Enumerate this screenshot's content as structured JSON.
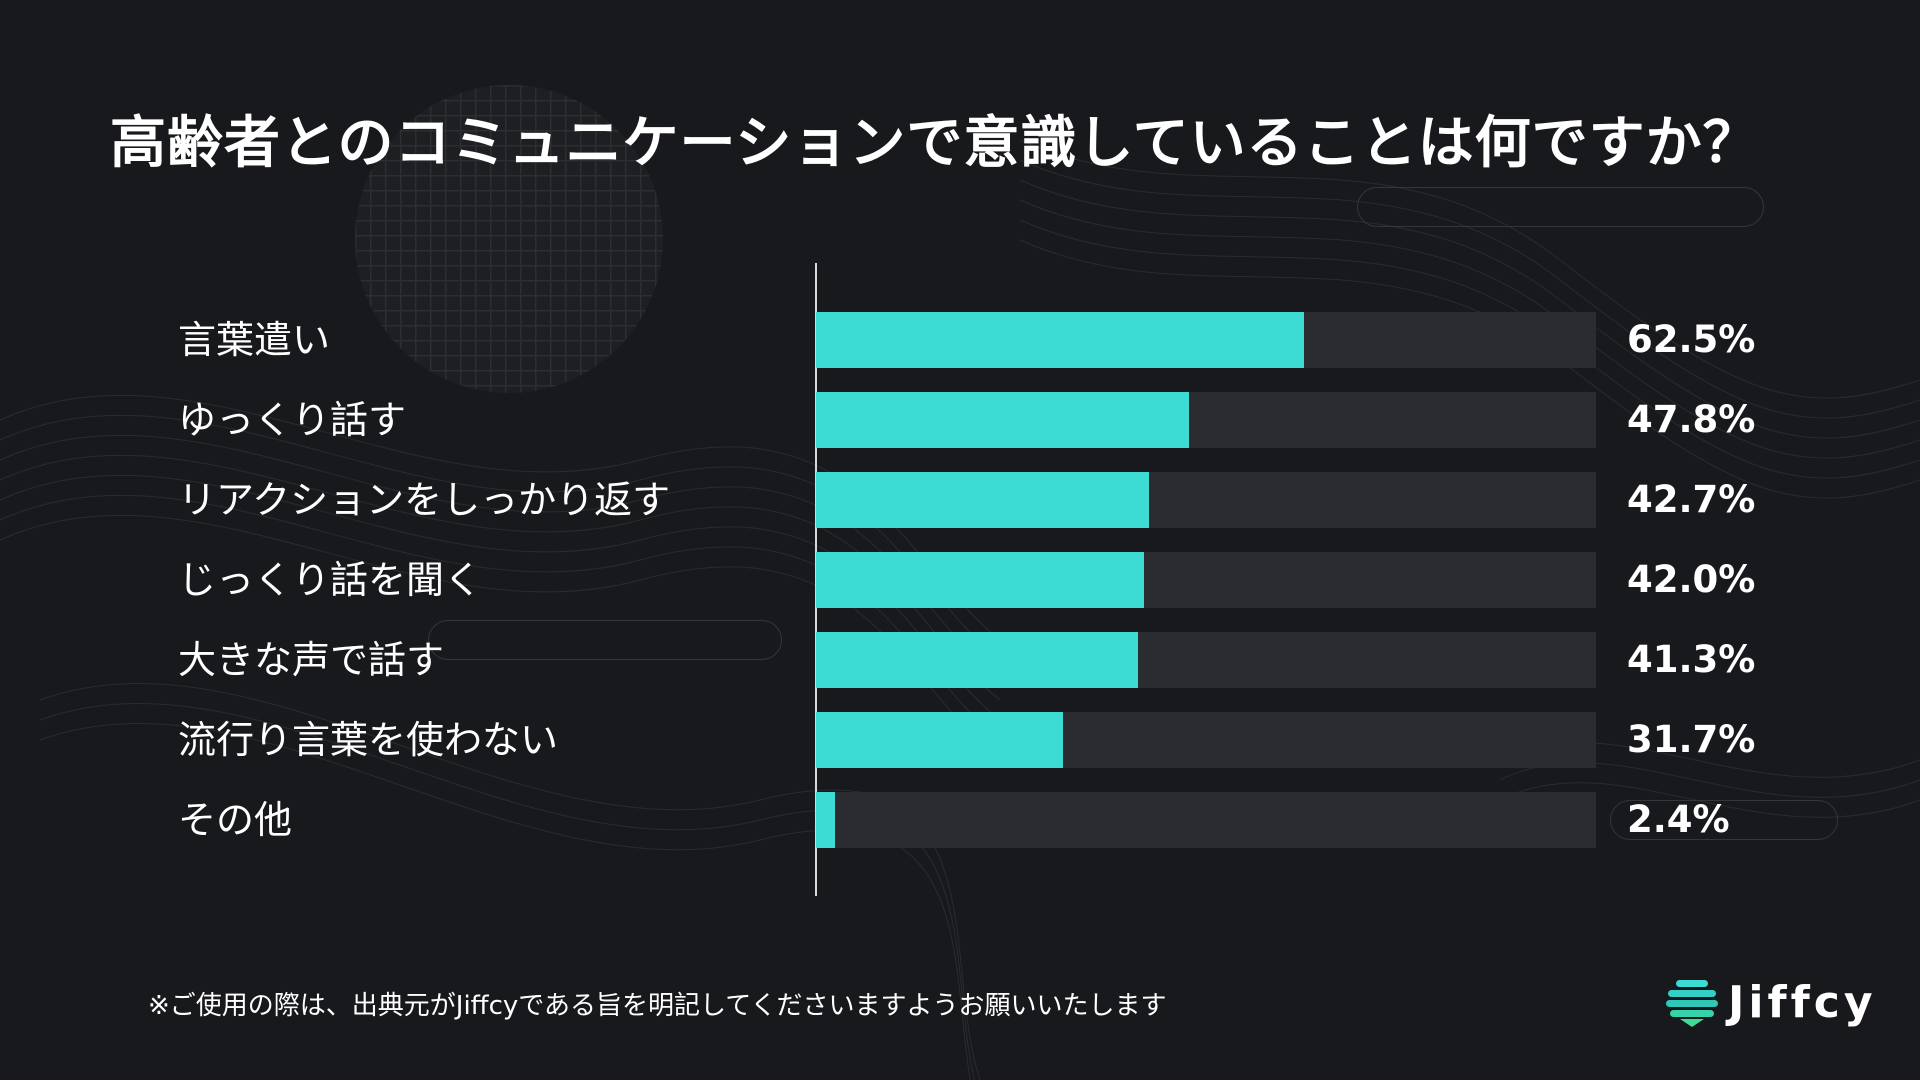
{
  "title": "高齢者とのコミュニケーションで意識していることは何ですか？",
  "footnote": "※ご使用の際は、出典元がJiffcyである旨を明記してくださいますようお願いいたします",
  "brand": {
    "name": "Jiffcy",
    "icon": "jiffcy-logo-icon"
  },
  "colors": {
    "background": "#18191c",
    "bar": "#3ddcd3",
    "track": "#2a2c30",
    "text": "#ffffff"
  },
  "chart_data": {
    "type": "bar",
    "orientation": "horizontal",
    "title": "高齢者とのコミュニケーションで意識していることは何ですか？",
    "categories": [
      "言葉遣い",
      "ゆっくり話す",
      "リアクションをしっかり返す",
      "じっくり話を聞く",
      "大きな声で話す",
      "流行り言葉を使わない",
      "その他"
    ],
    "values": [
      62.5,
      47.8,
      42.7,
      42.0,
      41.3,
      31.7,
      2.4
    ],
    "value_labels": [
      "62.5%",
      "47.8%",
      "42.7%",
      "42.0%",
      "41.3%",
      "31.7%",
      "2.4%"
    ],
    "unit": "%",
    "xlim": [
      0,
      100
    ],
    "grid": false,
    "legend": "none"
  }
}
